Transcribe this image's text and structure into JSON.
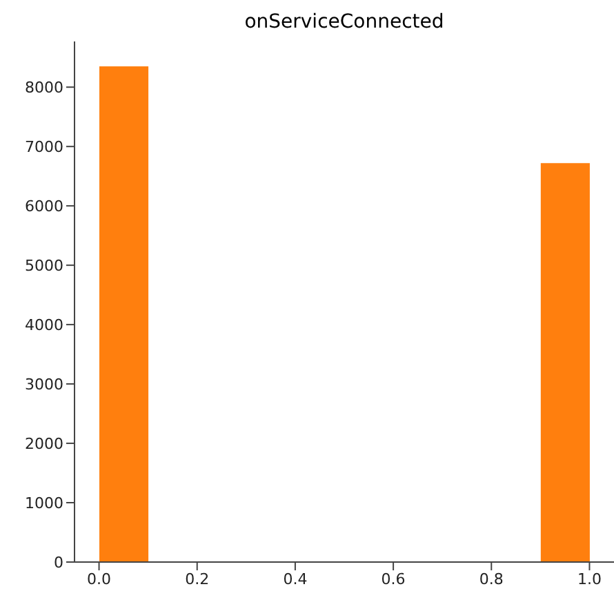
{
  "chart_data": {
    "type": "histogram",
    "title": "onServiceConnected",
    "bins": [
      0,
      0.1,
      0.2,
      0.3,
      0.4,
      0.5,
      0.6,
      0.7,
      0.8,
      0.9,
      1.0
    ],
    "values": [
      8350,
      0,
      0,
      0,
      0,
      0,
      0,
      0,
      0,
      6720
    ],
    "color": "#ff7f0e",
    "xlim": [
      -0.05,
      1.05
    ],
    "xticks": [
      {
        "value": 0,
        "label": "0.0"
      },
      {
        "value": 0.2,
        "label": "0.2"
      },
      {
        "value": 0.4,
        "label": "0.4"
      },
      {
        "value": 0.6,
        "label": "0.6"
      },
      {
        "value": 0.8,
        "label": "0.8"
      },
      {
        "value": 1,
        "label": "1.0"
      }
    ],
    "ylim": [
      0,
      8770
    ],
    "yticks": [
      0,
      1000,
      2000,
      3000,
      4000,
      5000,
      6000,
      7000,
      8000
    ],
    "grid": false
  }
}
